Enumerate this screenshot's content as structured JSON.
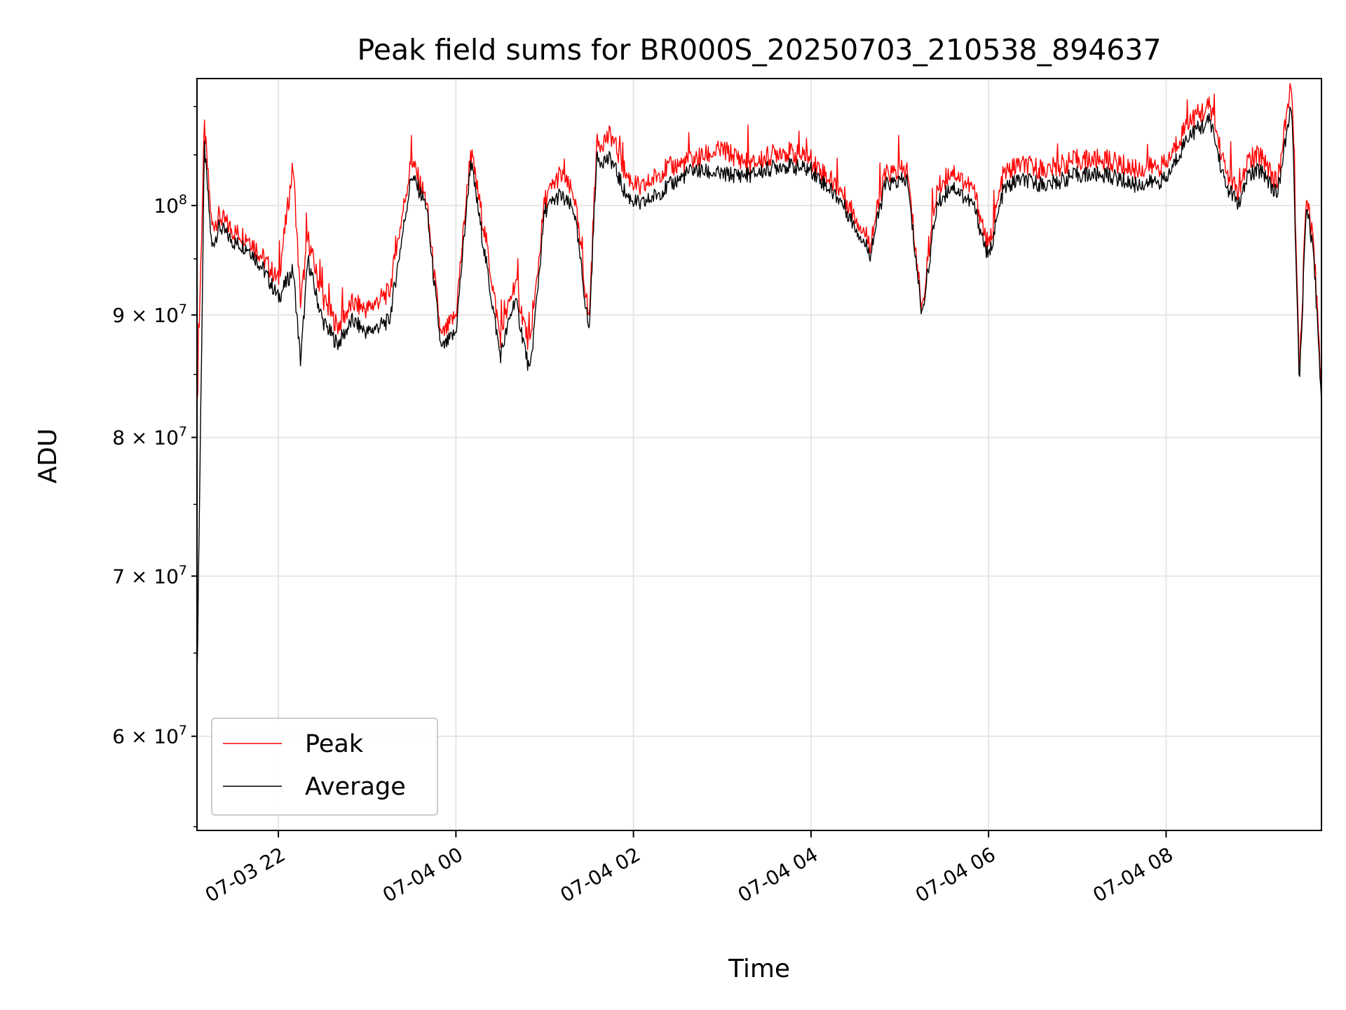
{
  "chart_data": {
    "type": "line",
    "title": "Peak field sums for BR000S_20250703_210538_894637",
    "xlabel": "Time",
    "ylabel": "ADU",
    "yscale": "log",
    "ylim": [
      54800000,
      113000000
    ],
    "xlim": [
      "2025-07-03 21:05",
      "2025-07-04 09:45"
    ],
    "grid": true,
    "legend_position": "lower-left",
    "x_ticks": [
      "07-03 22",
      "07-04 00",
      "07-04 02",
      "07-04 04",
      "07-04 06",
      "07-04 08"
    ],
    "y_ticks": [
      {
        "mantissa": "",
        "base": "10",
        "exp": "8",
        "value": 100000000
      },
      {
        "mantissa": "9",
        "base": "10",
        "exp": "7",
        "value": 90000000
      },
      {
        "mantissa": "8",
        "base": "10",
        "exp": "7",
        "value": 80000000
      },
      {
        "mantissa": "7",
        "base": "10",
        "exp": "7",
        "value": 70000000
      },
      {
        "mantissa": "6",
        "base": "10",
        "exp": "7",
        "value": 60000000
      }
    ],
    "series": [
      {
        "name": "Peak",
        "color": "#ff0000",
        "x": [
          "2025-07-03 21:05",
          "2025-07-03 21:10",
          "2025-07-03 21:15",
          "2025-07-03 21:20",
          "2025-07-03 21:30",
          "2025-07-03 21:40",
          "2025-07-03 21:50",
          "2025-07-03 22:00",
          "2025-07-03 22:10",
          "2025-07-03 22:15",
          "2025-07-03 22:20",
          "2025-07-03 22:25",
          "2025-07-03 22:30",
          "2025-07-03 22:40",
          "2025-07-03 22:50",
          "2025-07-03 23:00",
          "2025-07-03 23:15",
          "2025-07-03 23:30",
          "2025-07-03 23:40",
          "2025-07-03 23:50",
          "2025-07-04 00:00",
          "2025-07-04 00:10",
          "2025-07-04 00:20",
          "2025-07-04 00:30",
          "2025-07-04 00:40",
          "2025-07-04 00:50",
          "2025-07-04 01:00",
          "2025-07-04 01:10",
          "2025-07-04 01:20",
          "2025-07-04 01:30",
          "2025-07-04 01:35",
          "2025-07-04 01:45",
          "2025-07-04 01:55",
          "2025-07-04 02:05",
          "2025-07-04 02:20",
          "2025-07-04 02:40",
          "2025-07-04 03:00",
          "2025-07-04 03:20",
          "2025-07-04 03:40",
          "2025-07-04 04:00",
          "2025-07-04 04:20",
          "2025-07-04 04:40",
          "2025-07-04 04:50",
          "2025-07-04 05:05",
          "2025-07-04 05:15",
          "2025-07-04 05:25",
          "2025-07-04 05:35",
          "2025-07-04 05:50",
          "2025-07-04 06:00",
          "2025-07-04 06:10",
          "2025-07-04 06:20",
          "2025-07-04 06:40",
          "2025-07-04 07:00",
          "2025-07-04 07:20",
          "2025-07-04 07:40",
          "2025-07-04 08:00",
          "2025-07-04 08:15",
          "2025-07-04 08:30",
          "2025-07-04 08:40",
          "2025-07-04 08:50",
          "2025-07-04 08:55",
          "2025-07-04 09:05",
          "2025-07-04 09:15",
          "2025-07-04 09:25",
          "2025-07-04 09:30",
          "2025-07-04 09:35",
          "2025-07-04 09:40",
          "2025-07-04 09:45"
        ],
        "values": [
          82000000,
          108000000,
          98000000,
          99000000,
          97500000,
          97000000,
          95000000,
          93000000,
          104000000,
          91000000,
          97000000,
          94000000,
          91500000,
          89000000,
          91000000,
          90500000,
          92000000,
          104500000,
          100500000,
          88000000,
          90000000,
          105500000,
          97000000,
          88000000,
          93000000,
          87000000,
          100500000,
          103000000,
          101000000,
          89500000,
          106000000,
          107000000,
          103000000,
          101500000,
          103500000,
          104500000,
          105500000,
          104000000,
          105500000,
          104500000,
          101500000,
          96500000,
          103000000,
          103500000,
          90500000,
          101500000,
          103500000,
          101500000,
          96000000,
          103000000,
          104000000,
          103500000,
          104500000,
          104500000,
          103500000,
          104000000,
          108500000,
          110000000,
          103500000,
          101000000,
          104500000,
          105000000,
          102000000,
          113000000,
          85000000,
          101500000,
          96000000,
          84000000
        ]
      },
      {
        "name": "Average",
        "color": "#000000",
        "x": [
          "2025-07-03 21:05",
          "2025-07-03 21:10",
          "2025-07-03 21:15",
          "2025-07-03 21:20",
          "2025-07-03 21:30",
          "2025-07-03 21:40",
          "2025-07-03 21:50",
          "2025-07-03 22:00",
          "2025-07-03 22:10",
          "2025-07-03 22:15",
          "2025-07-03 22:20",
          "2025-07-03 22:25",
          "2025-07-03 22:30",
          "2025-07-03 22:40",
          "2025-07-03 22:50",
          "2025-07-03 23:00",
          "2025-07-03 23:15",
          "2025-07-03 23:30",
          "2025-07-03 23:40",
          "2025-07-03 23:50",
          "2025-07-04 00:00",
          "2025-07-04 00:10",
          "2025-07-04 00:20",
          "2025-07-04 00:30",
          "2025-07-04 00:40",
          "2025-07-04 00:50",
          "2025-07-04 01:00",
          "2025-07-04 01:10",
          "2025-07-04 01:20",
          "2025-07-04 01:30",
          "2025-07-04 01:35",
          "2025-07-04 01:45",
          "2025-07-04 01:55",
          "2025-07-04 02:05",
          "2025-07-04 02:20",
          "2025-07-04 02:40",
          "2025-07-04 03:00",
          "2025-07-04 03:20",
          "2025-07-04 03:40",
          "2025-07-04 04:00",
          "2025-07-04 04:20",
          "2025-07-04 04:40",
          "2025-07-04 04:50",
          "2025-07-04 05:05",
          "2025-07-04 05:15",
          "2025-07-04 05:25",
          "2025-07-04 05:35",
          "2025-07-04 05:50",
          "2025-07-04 06:00",
          "2025-07-04 06:10",
          "2025-07-04 06:20",
          "2025-07-04 06:40",
          "2025-07-04 07:00",
          "2025-07-04 07:20",
          "2025-07-04 07:40",
          "2025-07-04 08:00",
          "2025-07-04 08:15",
          "2025-07-04 08:30",
          "2025-07-04 08:40",
          "2025-07-04 08:50",
          "2025-07-04 08:55",
          "2025-07-04 09:05",
          "2025-07-04 09:15",
          "2025-07-04 09:25",
          "2025-07-04 09:30",
          "2025-07-04 09:35",
          "2025-07-04 09:40",
          "2025-07-04 09:45"
        ],
        "values": [
          63000000,
          106000000,
          96000000,
          98000000,
          96500000,
          96000000,
          94000000,
          91500000,
          94000000,
          86000000,
          95000000,
          92000000,
          89500000,
          87500000,
          89500000,
          88500000,
          89500000,
          103000000,
          100000000,
          87000000,
          88500000,
          104500000,
          95000000,
          86500000,
          91500000,
          85000000,
          99500000,
          101000000,
          99500000,
          88500000,
          104500000,
          104500000,
          101000000,
          100000000,
          101500000,
          103500000,
          103000000,
          103000000,
          104000000,
          103500000,
          100500000,
          95500000,
          102000000,
          102500000,
          90000000,
          100000000,
          102000000,
          100000000,
          95000000,
          101500000,
          102500000,
          102000000,
          103000000,
          103000000,
          102000000,
          102500000,
          107000000,
          108500000,
          102000000,
          100000000,
          103000000,
          103500000,
          101000000,
          110500000,
          84000000,
          100500000,
          95000000,
          83000000
        ]
      }
    ]
  }
}
